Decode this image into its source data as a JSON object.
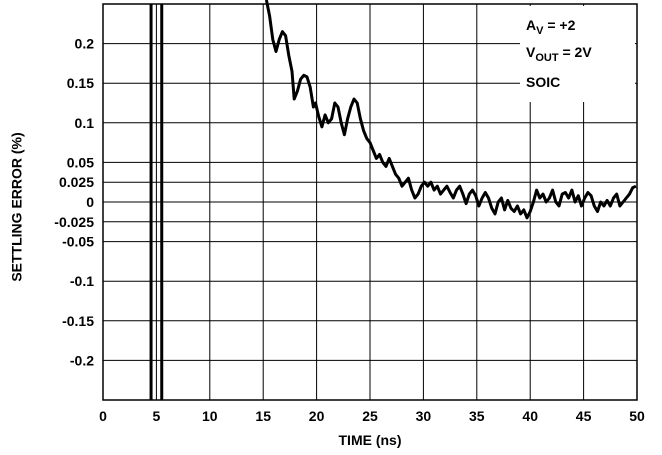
{
  "chart_data": {
    "type": "line",
    "xlabel": "TIME (ns)",
    "ylabel": "SETTLING ERROR (%)",
    "xlim": [
      0,
      50
    ],
    "ylim": [
      -0.25,
      0.25
    ],
    "grid": true,
    "x_ticks": [
      {
        "value": 0,
        "label": "0"
      },
      {
        "value": 5,
        "label": "5"
      },
      {
        "value": 10,
        "label": "10"
      },
      {
        "value": 15,
        "label": "15"
      },
      {
        "value": 20,
        "label": "20"
      },
      {
        "value": 25,
        "label": "25"
      },
      {
        "value": 30,
        "label": "30"
      },
      {
        "value": 35,
        "label": "35"
      },
      {
        "value": 40,
        "label": "40"
      },
      {
        "value": 45,
        "label": "45"
      },
      {
        "value": 50,
        "label": "50"
      }
    ],
    "y_ticks": [
      {
        "value": 0.2,
        "label": "0.2"
      },
      {
        "value": 0.15,
        "label": "0.15"
      },
      {
        "value": 0.1,
        "label": "0.1"
      },
      {
        "value": 0.05,
        "label": "0.05"
      },
      {
        "value": 0.025,
        "label": "0.025"
      },
      {
        "value": 0,
        "label": "0"
      },
      {
        "value": -0.025,
        "label": "-0.025"
      },
      {
        "value": -0.05,
        "label": "-0.05"
      },
      {
        "value": -0.1,
        "label": "-0.1"
      },
      {
        "value": -0.15,
        "label": "-0.15"
      },
      {
        "value": -0.2,
        "label": "-0.2"
      }
    ],
    "markers_x": [
      4.5,
      5.5
    ],
    "annotations": [
      {
        "id": "gain",
        "main": "A",
        "sub": "V",
        "rest": " = +2"
      },
      {
        "id": "vout",
        "main": "V",
        "sub": "OUT",
        "rest": " = 2V"
      },
      {
        "id": "package",
        "main": "SOIC",
        "sub": "",
        "rest": ""
      }
    ],
    "series": [
      {
        "values": [
          [
            15.3,
            0.255
          ],
          [
            15.6,
            0.235
          ],
          [
            15.9,
            0.205
          ],
          [
            16.2,
            0.19
          ],
          [
            16.5,
            0.205
          ],
          [
            16.8,
            0.215
          ],
          [
            17.1,
            0.21
          ],
          [
            17.4,
            0.185
          ],
          [
            17.7,
            0.165
          ],
          [
            17.9,
            0.13
          ],
          [
            18.2,
            0.14
          ],
          [
            18.5,
            0.155
          ],
          [
            18.8,
            0.16
          ],
          [
            19.1,
            0.158
          ],
          [
            19.4,
            0.145
          ],
          [
            19.7,
            0.12
          ],
          [
            19.9,
            0.125
          ],
          [
            20.2,
            0.108
          ],
          [
            20.5,
            0.095
          ],
          [
            20.8,
            0.11
          ],
          [
            21.1,
            0.1
          ],
          [
            21.4,
            0.105
          ],
          [
            21.7,
            0.125
          ],
          [
            22.0,
            0.12
          ],
          [
            22.3,
            0.1
          ],
          [
            22.6,
            0.085
          ],
          [
            22.9,
            0.105
          ],
          [
            23.2,
            0.12
          ],
          [
            23.5,
            0.13
          ],
          [
            23.8,
            0.125
          ],
          [
            24.1,
            0.105
          ],
          [
            24.4,
            0.09
          ],
          [
            24.7,
            0.08
          ],
          [
            25.0,
            0.075
          ],
          [
            25.3,
            0.065
          ],
          [
            25.6,
            0.055
          ],
          [
            25.9,
            0.06
          ],
          [
            26.2,
            0.05
          ],
          [
            26.5,
            0.045
          ],
          [
            26.8,
            0.055
          ],
          [
            27.1,
            0.045
          ],
          [
            27.4,
            0.035
          ],
          [
            27.7,
            0.03
          ],
          [
            28.0,
            0.02
          ],
          [
            28.3,
            0.025
          ],
          [
            28.6,
            0.03
          ],
          [
            28.9,
            0.015
          ],
          [
            29.2,
            0.005
          ],
          [
            29.5,
            0.01
          ],
          [
            29.8,
            0.02
          ],
          [
            30.1,
            0.025
          ],
          [
            30.4,
            0.02
          ],
          [
            30.7,
            0.025
          ],
          [
            31.0,
            0.015
          ],
          [
            31.3,
            0.02
          ],
          [
            31.6,
            0.01
          ],
          [
            31.9,
            0.015
          ],
          [
            32.2,
            0.02
          ],
          [
            32.5,
            0.012
          ],
          [
            32.8,
            0.005
          ],
          [
            33.1,
            0.015
          ],
          [
            33.4,
            0.02
          ],
          [
            33.7,
            0.01
          ],
          [
            34.0,
            -0.002
          ],
          [
            34.3,
            0.01
          ],
          [
            34.6,
            0.015
          ],
          [
            34.9,
            0.008
          ],
          [
            35.2,
            -0.005
          ],
          [
            35.5,
            0.005
          ],
          [
            35.8,
            0.012
          ],
          [
            36.1,
            0.005
          ],
          [
            36.4,
            -0.008
          ],
          [
            36.7,
            -0.015
          ],
          [
            37.0,
            0.0
          ],
          [
            37.3,
            0.005
          ],
          [
            37.6,
            -0.01
          ],
          [
            37.9,
            0.002
          ],
          [
            38.2,
            -0.008
          ],
          [
            38.5,
            -0.012
          ],
          [
            38.8,
            -0.005
          ],
          [
            39.1,
            -0.015
          ],
          [
            39.4,
            -0.01
          ],
          [
            39.7,
            -0.02
          ],
          [
            40.0,
            -0.012
          ],
          [
            40.3,
            0.0
          ],
          [
            40.6,
            0.015
          ],
          [
            40.9,
            0.005
          ],
          [
            41.2,
            0.01
          ],
          [
            41.5,
            0.0
          ],
          [
            41.8,
            0.005
          ],
          [
            42.1,
            0.015
          ],
          [
            42.4,
            0.0
          ],
          [
            42.7,
            -0.005
          ],
          [
            43.0,
            0.01
          ],
          [
            43.3,
            0.012
          ],
          [
            43.6,
            0.005
          ],
          [
            43.9,
            0.015
          ],
          [
            44.2,
            0.0
          ],
          [
            44.5,
            0.008
          ],
          [
            44.8,
            -0.005
          ],
          [
            45.1,
            0.005
          ],
          [
            45.4,
            0.012
          ],
          [
            45.7,
            0.008
          ],
          [
            46.0,
            -0.005
          ],
          [
            46.3,
            -0.012
          ],
          [
            46.6,
            0.0
          ],
          [
            46.9,
            -0.005
          ],
          [
            47.2,
            0.002
          ],
          [
            47.5,
            -0.005
          ],
          [
            47.8,
            0.005
          ],
          [
            48.1,
            0.01
          ],
          [
            48.4,
            -0.005
          ],
          [
            48.7,
            0.0
          ],
          [
            49.0,
            0.005
          ],
          [
            49.3,
            0.01
          ],
          [
            49.6,
            0.018
          ],
          [
            49.9,
            0.02
          ]
        ]
      }
    ]
  }
}
